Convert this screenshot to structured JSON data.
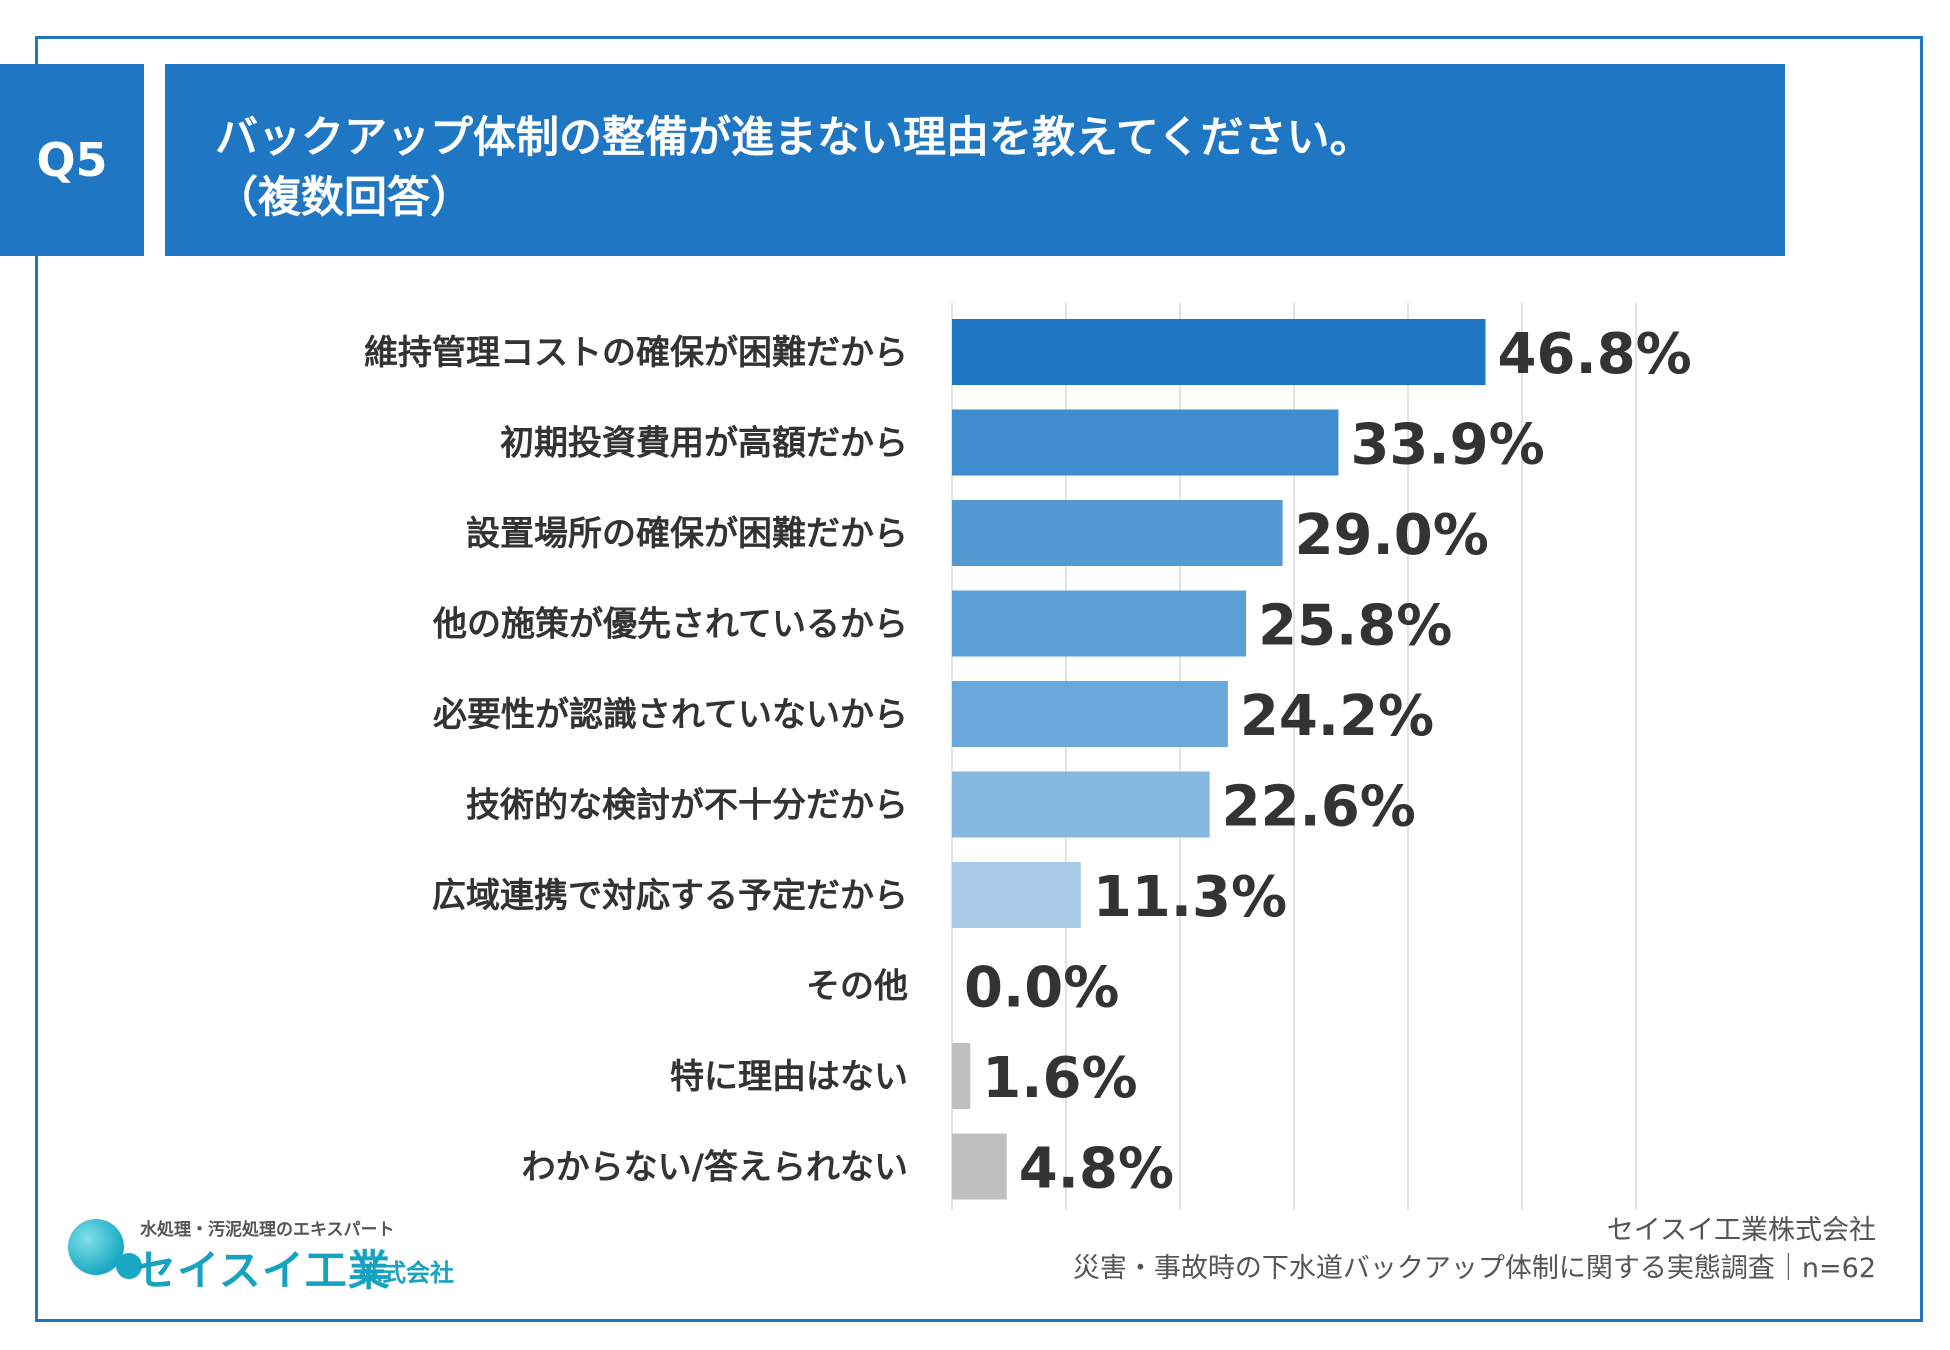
{
  "header": {
    "badge": "Q5",
    "title_line1": "バックアップ体制の整備が進まない理由を教えてください。",
    "title_line2": "（複数回答）"
  },
  "chart_data": {
    "type": "bar",
    "orientation": "horizontal",
    "title": "バックアップ体制の整備が進まない理由を教えてください。（複数回答）",
    "xlim": [
      0,
      60
    ],
    "grid": true,
    "categories": [
      "維持管理コストの確保が困難だから",
      "初期投資費用が高額だから",
      "設置場所の確保が困難だから",
      "他の施策が優先されているから",
      "必要性が認識されていないから",
      "技術的な検討が不十分だから",
      "広域連携で対応する予定だから",
      "その他",
      "特に理由はない",
      "わからない/答えられない"
    ],
    "values": [
      46.8,
      33.9,
      29.0,
      25.8,
      24.2,
      22.6,
      11.3,
      0.0,
      1.6,
      4.8
    ],
    "value_labels": [
      "46.8%",
      "33.9%",
      "29.0%",
      "25.8%",
      "24.2%",
      "22.6%",
      "11.3%",
      "0.0%",
      "1.6%",
      "4.8%"
    ],
    "bar_colors": [
      "#1f77c3",
      "#3f8dce",
      "#5599d3",
      "#5b9fd6",
      "#6aa8db",
      "#86b8e1",
      "#a9cbe8",
      "#bfbfbf",
      "#bfbfbf",
      "#bfbfbf"
    ]
  },
  "logo": {
    "tagline": "水処理・汚泥処理のエキスパート",
    "name": "セイスイ工業",
    "suffix": "株式会社"
  },
  "source": {
    "company": "セイスイ工業株式会社",
    "survey": "災害・事故時の下水道バックアップ体制に関する実態調査｜n=62"
  }
}
